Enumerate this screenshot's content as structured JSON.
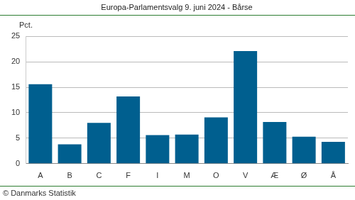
{
  "chart_data": {
    "type": "bar",
    "title": "Europa-Parlamentsvalg 9. juni 2024 - Bårse",
    "ylabel": "Pct.",
    "source": "© Danmarks Statistik",
    "categories": [
      "A",
      "B",
      "C",
      "F",
      "I",
      "M",
      "O",
      "V",
      "Æ",
      "Ø",
      "Å"
    ],
    "values": [
      15.6,
      3.8,
      8.0,
      13.2,
      5.6,
      5.7,
      9.1,
      22.1,
      8.2,
      5.3,
      4.3
    ],
    "color": "#005f8f",
    "ylim": [
      0,
      25
    ],
    "yticks": [
      0,
      5,
      10,
      15,
      20,
      25
    ],
    "grid": true
  }
}
